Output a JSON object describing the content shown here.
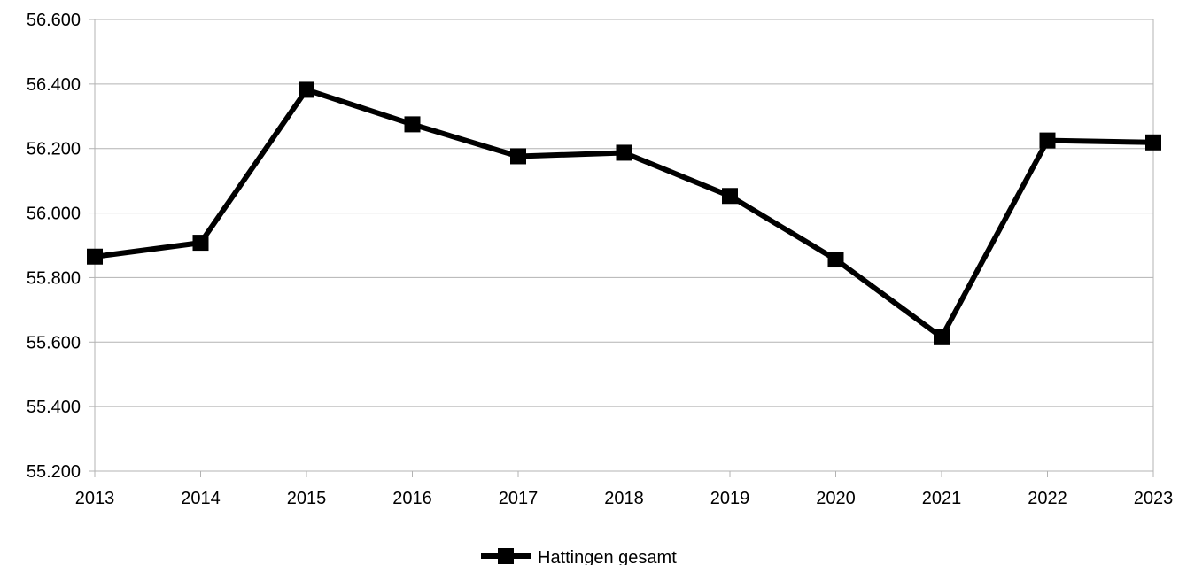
{
  "chart_data": {
    "type": "line",
    "x": [
      "2013",
      "2014",
      "2015",
      "2016",
      "2017",
      "2018",
      "2019",
      "2020",
      "2021",
      "2022",
      "2023"
    ],
    "series": [
      {
        "name": "Hattingen gesamt",
        "values": [
          55865,
          55908,
          56382,
          56275,
          56176,
          56187,
          56053,
          55856,
          55615,
          56225,
          56219
        ],
        "color": "#000000",
        "marker": "square"
      }
    ],
    "yticks": [
      "55.200",
      "55.400",
      "55.600",
      "55.800",
      "56.000",
      "56.200",
      "56.400",
      "56.600"
    ],
    "ylim": [
      55200,
      56600
    ],
    "ystep": 200,
    "grid": "horizontal",
    "legend_position": "bottom-center"
  }
}
